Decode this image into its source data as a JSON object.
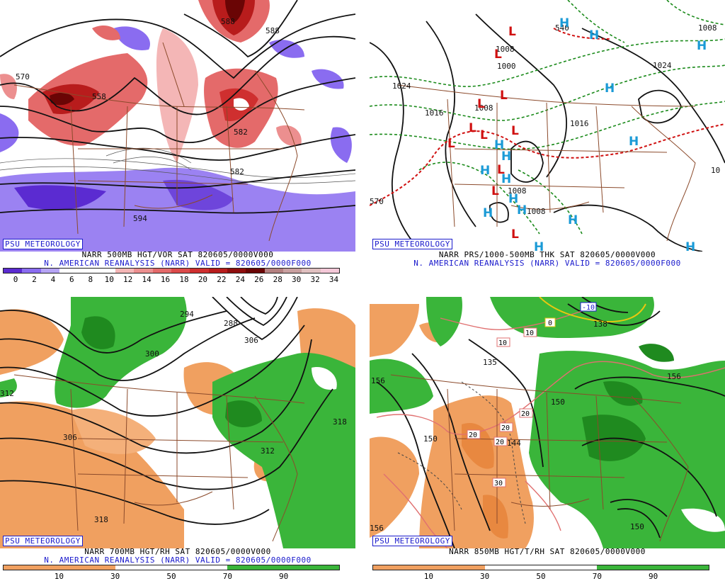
{
  "panels": {
    "tl": {
      "title": "NARR 500MB HGT/VOR SAT 820605/0000V000",
      "subtitle": "N. AMERICAN REANALYSIS (NARR) VALID = 820605/0000F000",
      "badge": "PSU METEOROLOGY",
      "scale_labels": [
        "0",
        "2",
        "4",
        "6",
        "8",
        "10",
        "12",
        "14",
        "16",
        "18",
        "20",
        "22",
        "24",
        "26",
        "28",
        "30",
        "32",
        "34"
      ],
      "scale_colors": [
        "#5b2bd1",
        "#8a6cf0",
        "#b6a4f5",
        "#ffffff",
        "#ffffff",
        "#ffffff",
        "#f4b6b6",
        "#ec8f8f",
        "#e46a6a",
        "#dc4a4a",
        "#cf2f2f",
        "#b81c1c",
        "#8f0e0e",
        "#6a0505",
        "#b48080",
        "#c9a0a0",
        "#e0c0c0",
        "#f4c8d8"
      ],
      "contour_labels": [
        "570",
        "558",
        "594",
        "582",
        "582",
        "588",
        "588"
      ]
    },
    "tr": {
      "title": "NARR PRS/1000-500MB THK SAT 820605/0000V000",
      "subtitle": "N. AMERICAN REANALYSIS (NARR) VALID = 820605/0000F000",
      "badge": "PSU METEOROLOGY",
      "isobar_labels": [
        "1024",
        "1000",
        "1008",
        "1016",
        "1008",
        "1008",
        "1008",
        "1024",
        "1008",
        "1016",
        "10",
        "570",
        "540"
      ],
      "high_symbol": "H",
      "low_symbol": "L"
    },
    "bl": {
      "title": "NARR 700MB HGT/RH SAT 820605/0000V000",
      "subtitle": "N. AMERICAN REANALYSIS (NARR) VALID = 820605/0000F000",
      "badge": "PSU METEOROLOGY",
      "scale_labels": [
        "10",
        "30",
        "50",
        "70",
        "90"
      ],
      "scale_colors": [
        "#f0a060",
        "#f0a060",
        "#ffffff",
        "#ffffff",
        "#3ab53a",
        "#3ab53a"
      ],
      "contour_labels": [
        "294",
        "288",
        "306",
        "300",
        "312",
        "306",
        "312",
        "318",
        "318"
      ]
    },
    "br": {
      "title": "NARR 850MB HGT/T/RH SAT 820605/0000V000",
      "subtitle": "",
      "badge": "PSU METEOROLOGY",
      "scale_labels": [
        "10",
        "30",
        "50",
        "70",
        "90"
      ],
      "scale_colors": [
        "#f0a060",
        "#f0a060",
        "#ffffff",
        "#ffffff",
        "#3ab53a",
        "#3ab53a"
      ],
      "contour_labels": [
        "156",
        "135",
        "150",
        "156",
        "144",
        "150",
        "156",
        "150",
        "138"
      ],
      "temp_labels": [
        "-10",
        "0",
        "10",
        "10",
        "20",
        "20",
        "20",
        "20",
        "30"
      ]
    }
  }
}
